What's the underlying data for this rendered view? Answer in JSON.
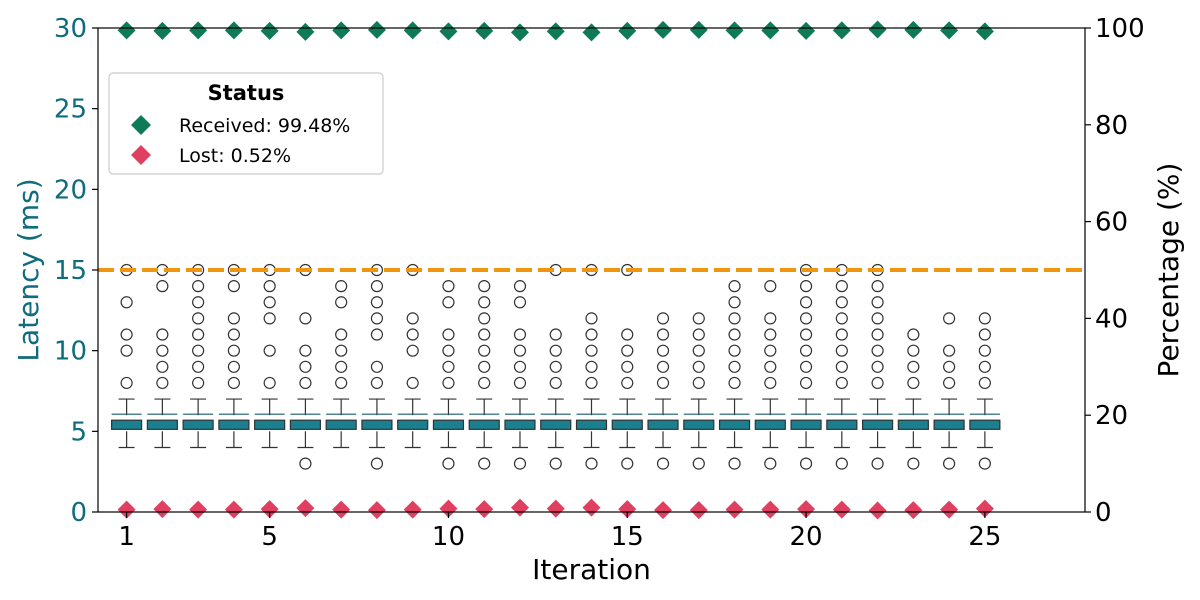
{
  "chart_data": {
    "type": "box",
    "xlabel": "Iteration",
    "ylabel_left": "Latency (ms)",
    "ylabel_right": "Percentage (%)",
    "xlim": [
      -0.8,
      26.8
    ],
    "ylim_left": [
      0,
      30
    ],
    "ylim_right": [
      0,
      100
    ],
    "x_ticks": [
      1,
      5,
      10,
      15,
      20,
      25
    ],
    "y_ticks_left": [
      0,
      5,
      10,
      15,
      20,
      25,
      30
    ],
    "y_ticks_right": [
      0,
      20,
      40,
      60,
      80,
      100
    ],
    "threshold_ms": 15,
    "colors": {
      "box": "#1a7f8e",
      "received": "#0e7a57",
      "lost": "#e0405f",
      "threshold": "#f0960e",
      "left_axis": "#0f6b7e"
    },
    "legend": {
      "title": "Status",
      "position": "upper-left",
      "items": [
        {
          "label": "Received: 99.48%",
          "color": "#0e7a57"
        },
        {
          "label": "Lost: 0.52%",
          "color": "#e0405f"
        }
      ]
    },
    "box_stats": {
      "whisker_low": 4,
      "q1": 5,
      "median": 6,
      "q3": 6,
      "whisker_high": 7
    },
    "iterations": [
      {
        "x": 0,
        "outliers_high": [
          8,
          10,
          11,
          13,
          15
        ],
        "outliers_low": []
      },
      {
        "x": 1,
        "outliers_high": [
          8,
          9,
          10,
          11,
          14,
          15
        ],
        "outliers_low": []
      },
      {
        "x": 2,
        "outliers_high": [
          8,
          9,
          10,
          11,
          12,
          13,
          14,
          15
        ],
        "outliers_low": []
      },
      {
        "x": 3,
        "outliers_high": [
          8,
          9,
          10,
          11,
          12,
          14,
          15
        ],
        "outliers_low": []
      },
      {
        "x": 4,
        "outliers_high": [
          8,
          10,
          12,
          13,
          14,
          15
        ],
        "outliers_low": []
      },
      {
        "x": 5,
        "outliers_high": [
          8,
          9,
          10,
          12,
          15
        ],
        "outliers_low": [
          3
        ]
      },
      {
        "x": 6,
        "outliers_high": [
          8,
          9,
          10,
          11,
          13,
          14
        ],
        "outliers_low": []
      },
      {
        "x": 7,
        "outliers_high": [
          8,
          9,
          11,
          12,
          13,
          14,
          15
        ],
        "outliers_low": [
          3
        ]
      },
      {
        "x": 8,
        "outliers_high": [
          8,
          10,
          11,
          12,
          15
        ],
        "outliers_low": []
      },
      {
        "x": 9,
        "outliers_high": [
          8,
          9,
          10,
          11,
          13,
          14
        ],
        "outliers_low": [
          3
        ]
      },
      {
        "x": 10,
        "outliers_high": [
          8,
          9,
          10,
          11,
          12,
          13,
          14
        ],
        "outliers_low": [
          3
        ]
      },
      {
        "x": 11,
        "outliers_high": [
          8,
          9,
          10,
          11,
          13,
          14
        ],
        "outliers_low": [
          3
        ]
      },
      {
        "x": 12,
        "outliers_high": [
          8,
          9,
          10,
          11,
          15
        ],
        "outliers_low": [
          3
        ]
      },
      {
        "x": 13,
        "outliers_high": [
          8,
          9,
          10,
          11,
          12,
          15
        ],
        "outliers_low": [
          3
        ]
      },
      {
        "x": 14,
        "outliers_high": [
          8,
          9,
          10,
          11,
          15
        ],
        "outliers_low": [
          3
        ]
      },
      {
        "x": 15,
        "outliers_high": [
          8,
          9,
          10,
          11,
          12
        ],
        "outliers_low": [
          3
        ]
      },
      {
        "x": 16,
        "outliers_high": [
          8,
          9,
          10,
          11,
          12
        ],
        "outliers_low": [
          3
        ]
      },
      {
        "x": 17,
        "outliers_high": [
          8,
          9,
          10,
          11,
          12,
          13,
          14
        ],
        "outliers_low": [
          3
        ]
      },
      {
        "x": 18,
        "outliers_high": [
          8,
          9,
          10,
          11,
          12,
          14
        ],
        "outliers_low": [
          3
        ]
      },
      {
        "x": 19,
        "outliers_high": [
          8,
          9,
          10,
          11,
          12,
          13,
          14,
          15
        ],
        "outliers_low": [
          3
        ]
      },
      {
        "x": 20,
        "outliers_high": [
          8,
          9,
          10,
          11,
          12,
          13,
          14,
          15
        ],
        "outliers_low": [
          3
        ]
      },
      {
        "x": 21,
        "outliers_high": [
          8,
          9,
          10,
          11,
          12,
          13,
          14,
          15
        ],
        "outliers_low": [
          3
        ]
      },
      {
        "x": 22,
        "outliers_high": [
          8,
          9,
          10,
          11
        ],
        "outliers_low": [
          3
        ]
      },
      {
        "x": 23,
        "outliers_high": [
          8,
          9,
          10,
          12
        ],
        "outliers_low": [
          3
        ]
      },
      {
        "x": 24,
        "outliers_high": [
          8,
          9,
          10,
          11,
          12
        ],
        "outliers_low": [
          3
        ]
      }
    ],
    "received_pct": [
      99.5,
      99.4,
      99.5,
      99.5,
      99.4,
      99.2,
      99.5,
      99.6,
      99.5,
      99.3,
      99.4,
      99.1,
      99.3,
      99.1,
      99.4,
      99.6,
      99.6,
      99.5,
      99.5,
      99.4,
      99.5,
      99.7,
      99.6,
      99.5,
      99.3
    ],
    "lost_pct": [
      0.5,
      0.6,
      0.5,
      0.5,
      0.6,
      0.8,
      0.5,
      0.4,
      0.5,
      0.7,
      0.6,
      0.9,
      0.7,
      0.9,
      0.6,
      0.4,
      0.4,
      0.5,
      0.5,
      0.6,
      0.5,
      0.3,
      0.4,
      0.5,
      0.7
    ]
  }
}
